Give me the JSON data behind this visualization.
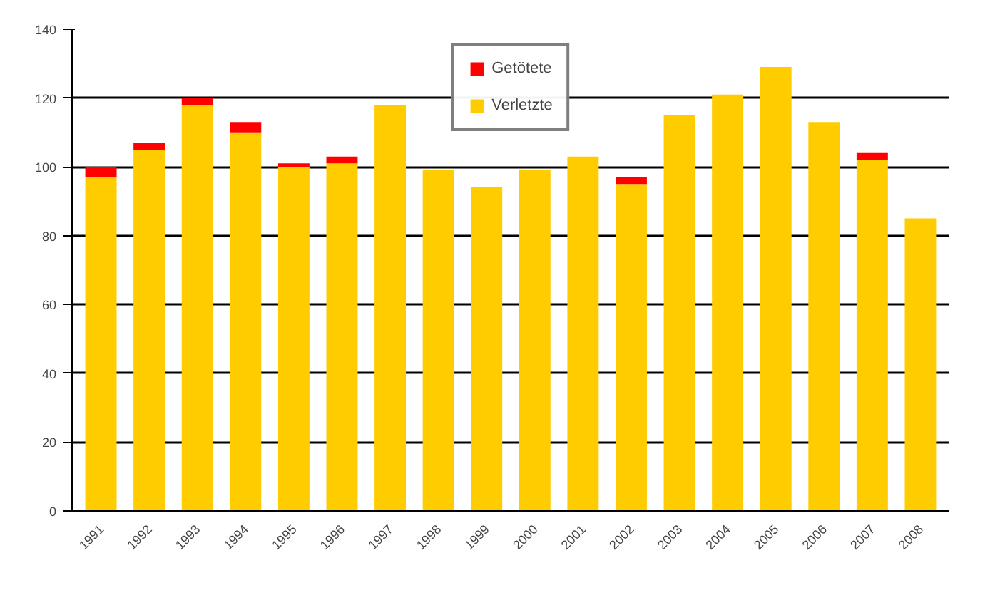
{
  "chart_data": {
    "type": "bar",
    "stacked": true,
    "categories": [
      "1991",
      "1992",
      "1993",
      "1994",
      "1995",
      "1996",
      "1997",
      "1998",
      "1999",
      "2000",
      "2001",
      "2002",
      "2003",
      "2004",
      "2005",
      "2006",
      "2007",
      "2008"
    ],
    "series": [
      {
        "name": "Verletzte",
        "color": "#ffcc00",
        "values": [
          97,
          105,
          118,
          110,
          100,
          101,
          118,
          99,
          94,
          99,
          103,
          95,
          115,
          121,
          129,
          113,
          102,
          85
        ]
      },
      {
        "name": "Getötete",
        "color": "#ff0000",
        "values": [
          3,
          2,
          2,
          3,
          1,
          2,
          0,
          0,
          0,
          0,
          0,
          2,
          0,
          0,
          0,
          0,
          2,
          0
        ]
      }
    ],
    "ylim": [
      0,
      140
    ],
    "yticks": [
      0,
      20,
      40,
      60,
      80,
      100,
      120,
      140
    ],
    "grid": "y",
    "legend": "top"
  }
}
